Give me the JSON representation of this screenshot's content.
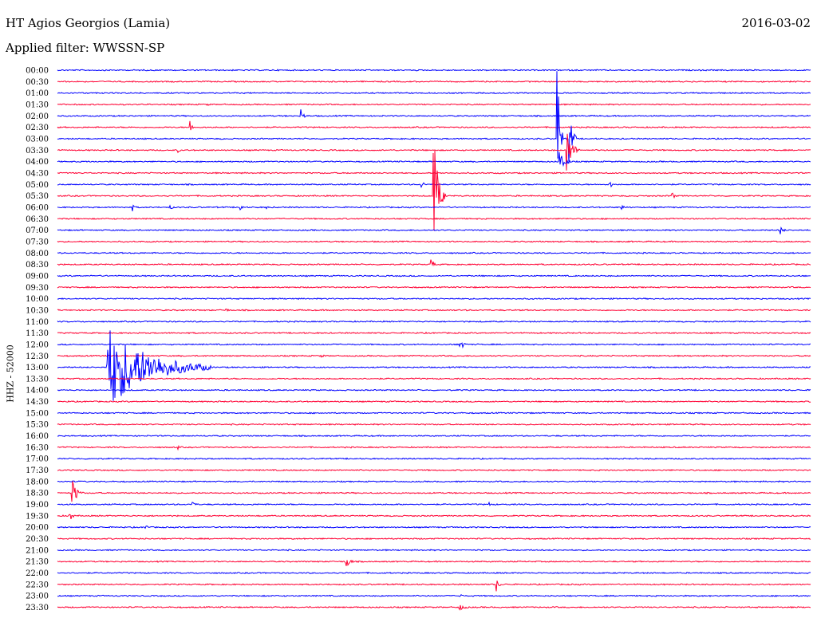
{
  "header": {
    "title": "HT Agios Georgios (Lamia)",
    "filter": "Applied filter: WWSSN-SP",
    "date": "2016-03-02"
  },
  "axis": {
    "ylabel": "HHZ - 52000"
  },
  "colors": {
    "blue": "#0000ff",
    "red": "#ff0033"
  },
  "chart_data": {
    "type": "line",
    "title": "HT Agios Georgios (Lamia)",
    "subtitle": "Applied filter: WWSSN-SP",
    "ylabel": "HHZ - 52000",
    "xlabel": "",
    "date": "2016-03-02",
    "row_interval_minutes": 30,
    "rows": [
      "00:00",
      "00:30",
      "01:00",
      "01:30",
      "02:00",
      "02:30",
      "03:00",
      "03:30",
      "04:00",
      "04:30",
      "05:00",
      "05:30",
      "06:00",
      "06:30",
      "07:00",
      "07:30",
      "08:00",
      "08:30",
      "09:00",
      "09:30",
      "10:00",
      "10:30",
      "11:00",
      "11:30",
      "12:00",
      "12:30",
      "13:00",
      "13:30",
      "14:00",
      "14:30",
      "15:00",
      "15:30",
      "16:00",
      "16:30",
      "17:00",
      "17:30",
      "18:00",
      "18:30",
      "19:00",
      "19:30",
      "20:00",
      "20:30",
      "21:00",
      "21:30",
      "22:00",
      "22:30",
      "23:00",
      "23:30"
    ],
    "series_colors": [
      "#0000ff",
      "#ff0033"
    ],
    "events": [
      {
        "row": "01:30",
        "minute": 6.0,
        "amplitude": 3,
        "duration": 4
      },
      {
        "row": "02:00",
        "minute": 9.7,
        "amplitude": 14,
        "duration": 8
      },
      {
        "row": "02:30",
        "minute": 5.3,
        "amplitude": 10,
        "duration": 4
      },
      {
        "row": "03:00",
        "minute": 19.9,
        "amplitude": 150,
        "duration": 8
      },
      {
        "row": "03:00",
        "minute": 20.4,
        "amplitude": 45,
        "duration": 10
      },
      {
        "row": "03:30",
        "minute": 4.8,
        "amplitude": 4,
        "duration": 4
      },
      {
        "row": "03:30",
        "minute": 20.3,
        "amplitude": 35,
        "duration": 16
      },
      {
        "row": "04:00",
        "minute": 20.0,
        "amplitude": 25,
        "duration": 14
      },
      {
        "row": "05:00",
        "minute": 14.5,
        "amplitude": 8,
        "duration": 8
      },
      {
        "row": "05:00",
        "minute": 22.0,
        "amplitude": 8,
        "duration": 4
      },
      {
        "row": "05:30",
        "minute": 15.0,
        "amplitude": 90,
        "duration": 14
      },
      {
        "row": "05:30",
        "minute": 24.5,
        "amplitude": 6,
        "duration": 6
      },
      {
        "row": "06:00",
        "minute": 3.0,
        "amplitude": 6,
        "duration": 8
      },
      {
        "row": "06:00",
        "minute": 4.5,
        "amplitude": 4,
        "duration": 6
      },
      {
        "row": "06:00",
        "minute": 7.3,
        "amplitude": 6,
        "duration": 6
      },
      {
        "row": "06:00",
        "minute": 8.3,
        "amplitude": 4,
        "duration": 6
      },
      {
        "row": "06:00",
        "minute": 22.5,
        "amplitude": 5,
        "duration": 6
      },
      {
        "row": "07:00",
        "minute": 28.8,
        "amplitude": 10,
        "duration": 6
      },
      {
        "row": "08:30",
        "minute": 14.9,
        "amplitude": 10,
        "duration": 8
      },
      {
        "row": "10:30",
        "minute": 6.7,
        "amplitude": 5,
        "duration": 4
      },
      {
        "row": "12:00",
        "minute": 16.0,
        "amplitude": 22,
        "duration": 8
      },
      {
        "row": "12:30",
        "minute": 10.5,
        "amplitude": 4,
        "duration": 10
      },
      {
        "row": "13:00",
        "minute": 2.0,
        "amplitude": 55,
        "duration": 130
      },
      {
        "row": "16:30",
        "minute": 4.8,
        "amplitude": 4,
        "duration": 6
      },
      {
        "row": "18:30",
        "minute": 0.6,
        "amplitude": 22,
        "duration": 14
      },
      {
        "row": "19:00",
        "minute": 5.4,
        "amplitude": 6,
        "duration": 6
      },
      {
        "row": "19:00",
        "minute": 17.2,
        "amplitude": 4,
        "duration": 8
      },
      {
        "row": "19:30",
        "minute": 0.5,
        "amplitude": 10,
        "duration": 8
      },
      {
        "row": "20:00",
        "minute": 3.5,
        "amplitude": 6,
        "duration": 6
      },
      {
        "row": "21:30",
        "minute": 11.5,
        "amplitude": 12,
        "duration": 12
      },
      {
        "row": "22:30",
        "minute": 17.5,
        "amplitude": 10,
        "duration": 8
      },
      {
        "row": "23:00",
        "minute": 16.0,
        "amplitude": 6,
        "duration": 6
      },
      {
        "row": "23:30",
        "minute": 16.0,
        "amplitude": 5,
        "duration": 20
      }
    ]
  }
}
